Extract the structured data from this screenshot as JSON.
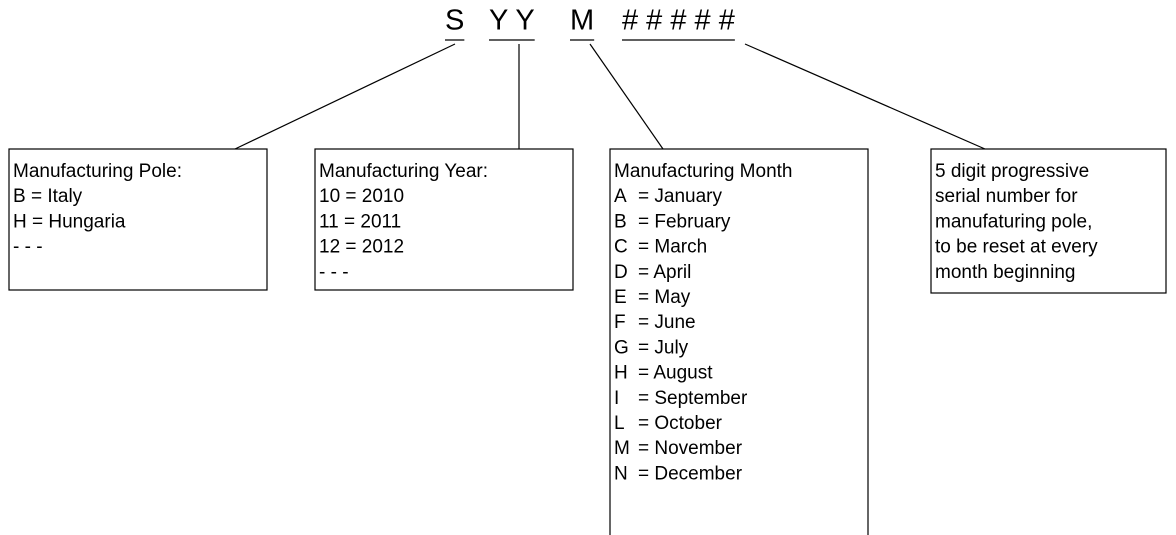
{
  "code": [
    "S",
    "Y Y",
    "M",
    "# # # # #"
  ],
  "boxes": [
    {
      "title": "Manufacturing Pole:",
      "lines": [
        "B = Italy",
        "H = Hungaria",
        "  - - -"
      ]
    },
    {
      "title": "Manufacturing Year:",
      "lines": [
        "10 = 2010",
        "11 = 2011",
        "12 = 2012",
        "   - - -"
      ]
    },
    {
      "title": "Manufacturing Month",
      "rows": [
        {
          "code": "A",
          "desc": "= January"
        },
        {
          "code": "B",
          "desc": "= February"
        },
        {
          "code": "C",
          "desc": "= March"
        },
        {
          "code": "D",
          "desc": "= April"
        },
        {
          "code": "E",
          "desc": "= May"
        },
        {
          "code": "F",
          "desc": "= June"
        },
        {
          "code": "G",
          "desc": "= July"
        },
        {
          "code": "H",
          "desc": "= August"
        },
        {
          "code": "I",
          "desc": "= September"
        },
        {
          "code": "L",
          "desc": "= October"
        },
        {
          "code": "M",
          "desc": "= November"
        },
        {
          "code": "N",
          "desc": "= December"
        }
      ]
    },
    {
      "title": "5 digit progressive",
      "lines": [
        "serial number for",
        "manufaturing pole,",
        "to be reset at every",
        "month beginning"
      ]
    }
  ]
}
